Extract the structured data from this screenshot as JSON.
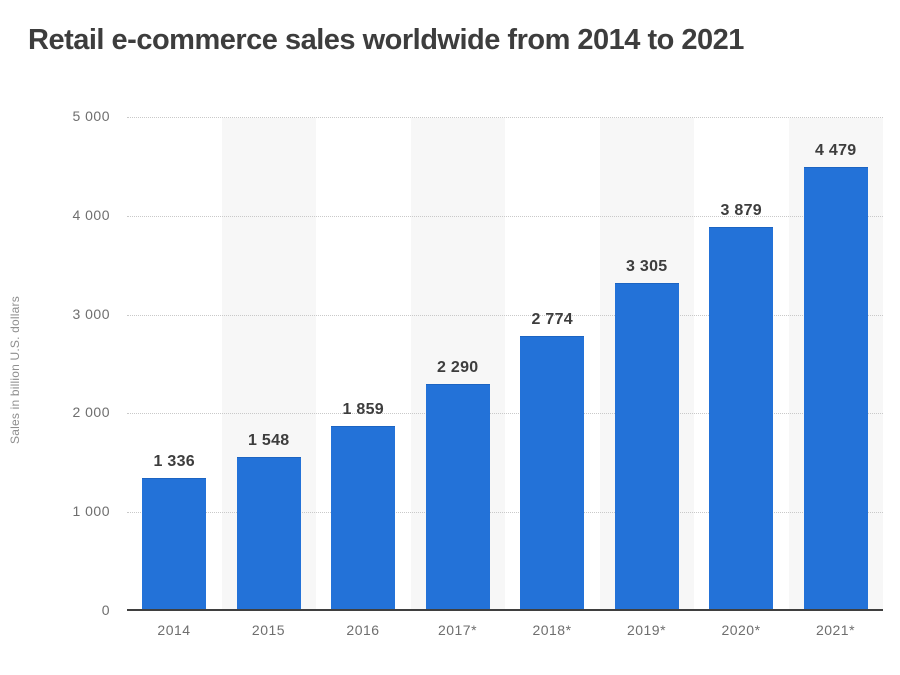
{
  "title": "Retail e-commerce sales worldwide from 2014 to 2021",
  "chart_data": {
    "type": "bar",
    "title": "Retail e-commerce sales worldwide from 2014 to 2021",
    "categories": [
      "2014",
      "2015",
      "2016",
      "2017*",
      "2018*",
      "2019*",
      "2020*",
      "2021*"
    ],
    "values": [
      1336,
      1548,
      1859,
      2290,
      2774,
      3305,
      3879,
      4479
    ],
    "value_labels": [
      "1 336",
      "1 548",
      "1 859",
      "2 290",
      "2 774",
      "3 305",
      "3 879",
      "4 479"
    ],
    "xlabel": "",
    "ylabel": "Sales in billion U.S. dollars",
    "ylim": [
      0,
      5000
    ],
    "yticks": [
      0,
      1000,
      2000,
      3000,
      4000,
      5000
    ],
    "ytick_labels": [
      "0",
      "1 000",
      "2 000",
      "3 000",
      "4 000",
      "5 000"
    ],
    "grid": "horizontal-dotted",
    "legend_position": "none",
    "colors": {
      "bar": "#2372d8",
      "bar_top_edge": "#1c64c2",
      "band": "#f7f7f7",
      "gridline": "#c9c9c9",
      "axis_line": "#3f3f3f",
      "title_text": "#3d3d3d",
      "value_label_text": "#3d3d3d",
      "tick_label_text": "#6e6e6e",
      "axis_title_text": "#8f8f8f",
      "background": "#ffffff"
    },
    "banded_slots": [
      1,
      3,
      5,
      7
    ]
  }
}
